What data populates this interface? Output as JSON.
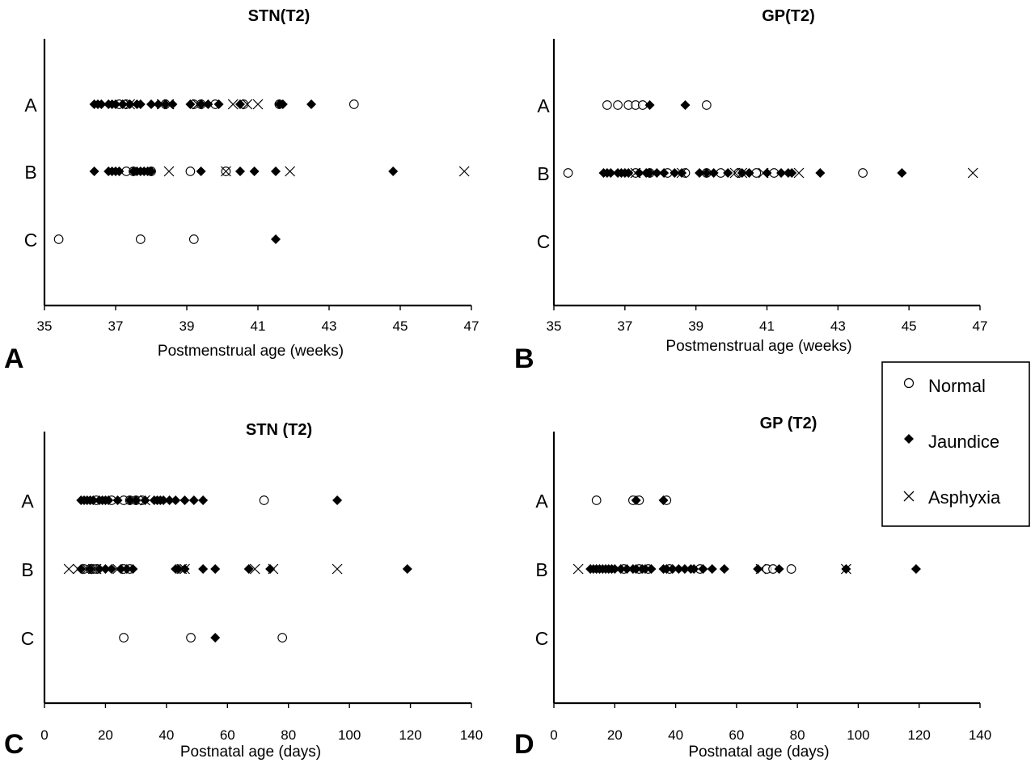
{
  "chart_data": [
    {
      "panel_letter": "A",
      "type": "scatter",
      "title": "STN(T2)",
      "xlabel": "Postmenstrual age  (weeks)",
      "xlim": [
        35,
        47
      ],
      "xticks": [
        "35",
        "37",
        "39",
        "41",
        "43",
        "45",
        "47"
      ],
      "categories": [
        "A",
        "B",
        "C"
      ],
      "series": [
        {
          "name": "Normal",
          "points": [
            [
              "A",
              37.1
            ],
            [
              "A",
              37.3
            ],
            [
              "A",
              38.4
            ],
            [
              "A",
              39.2
            ],
            [
              "A",
              39.4
            ],
            [
              "A",
              39.8
            ],
            [
              "A",
              40.6
            ],
            [
              "A",
              41.6
            ],
            [
              "A",
              43.7
            ],
            [
              "B",
              37.3
            ],
            [
              "B",
              37.5
            ],
            [
              "B",
              38.0
            ],
            [
              "B",
              39.1
            ],
            [
              "B",
              40.1
            ],
            [
              "C",
              35.4
            ],
            [
              "C",
              37.7
            ],
            [
              "C",
              39.2
            ]
          ]
        },
        {
          "name": "Jaundice",
          "points": [
            [
              "A",
              36.4
            ],
            [
              "A",
              36.5
            ],
            [
              "A",
              36.6
            ],
            [
              "A",
              36.8
            ],
            [
              "A",
              36.9
            ],
            [
              "A",
              37.0
            ],
            [
              "A",
              37.2
            ],
            [
              "A",
              37.4
            ],
            [
              "A",
              37.6
            ],
            [
              "A",
              37.7
            ],
            [
              "A",
              38.0
            ],
            [
              "A",
              38.2
            ],
            [
              "A",
              38.4
            ],
            [
              "A",
              38.6
            ],
            [
              "A",
              39.1
            ],
            [
              "A",
              39.4
            ],
            [
              "A",
              39.6
            ],
            [
              "A",
              39.9
            ],
            [
              "A",
              40.5
            ],
            [
              "A",
              41.6
            ],
            [
              "A",
              41.7
            ],
            [
              "A",
              42.5
            ],
            [
              "B",
              36.4
            ],
            [
              "B",
              36.8
            ],
            [
              "B",
              36.9
            ],
            [
              "B",
              37.0
            ],
            [
              "B",
              37.1
            ],
            [
              "B",
              37.5
            ],
            [
              "B",
              37.6
            ],
            [
              "B",
              37.7
            ],
            [
              "B",
              37.8
            ],
            [
              "B",
              37.9
            ],
            [
              "B",
              38.0
            ],
            [
              "B",
              39.4
            ],
            [
              "B",
              40.5
            ],
            [
              "B",
              40.9
            ],
            [
              "B",
              41.5
            ],
            [
              "B",
              44.8
            ],
            [
              "C",
              41.5
            ]
          ]
        },
        {
          "name": "Asphyxia",
          "points": [
            [
              "A",
              37.4
            ],
            [
              "A",
              38.3
            ],
            [
              "A",
              38.5
            ],
            [
              "A",
              39.3
            ],
            [
              "A",
              40.3
            ],
            [
              "A",
              40.7
            ],
            [
              "A",
              41.0
            ],
            [
              "B",
              38.5
            ],
            [
              "B",
              40.1
            ],
            [
              "B",
              41.9
            ],
            [
              "B",
              46.8
            ]
          ]
        }
      ]
    },
    {
      "panel_letter": "B",
      "type": "scatter",
      "title": "GP(T2)",
      "xlabel": "Postmenstrual age  (weeks)",
      "xlim": [
        35,
        47
      ],
      "xticks": [
        "35",
        "37",
        "39",
        "41",
        "43",
        "45",
        "47"
      ],
      "categories": [
        "A",
        "B",
        "C"
      ],
      "series": [
        {
          "name": "Normal",
          "points": [
            [
              "A",
              36.5
            ],
            [
              "A",
              36.8
            ],
            [
              "A",
              37.1
            ],
            [
              "A",
              37.3
            ],
            [
              "A",
              37.5
            ],
            [
              "A",
              39.3
            ],
            [
              "B",
              35.4
            ],
            [
              "B",
              37.3
            ],
            [
              "B",
              37.7
            ],
            [
              "B",
              38.2
            ],
            [
              "B",
              38.7
            ],
            [
              "B",
              39.3
            ],
            [
              "B",
              39.7
            ],
            [
              "B",
              40.2
            ],
            [
              "B",
              40.7
            ],
            [
              "B",
              41.2
            ],
            [
              "B",
              43.7
            ]
          ]
        },
        {
          "name": "Jaundice",
          "points": [
            [
              "A",
              37.7
            ],
            [
              "A",
              38.7
            ],
            [
              "B",
              36.4
            ],
            [
              "B",
              36.5
            ],
            [
              "B",
              36.6
            ],
            [
              "B",
              36.8
            ],
            [
              "B",
              36.9
            ],
            [
              "B",
              37.0
            ],
            [
              "B",
              37.1
            ],
            [
              "B",
              37.4
            ],
            [
              "B",
              37.6
            ],
            [
              "B",
              37.7
            ],
            [
              "B",
              37.9
            ],
            [
              "B",
              38.1
            ],
            [
              "B",
              38.4
            ],
            [
              "B",
              38.6
            ],
            [
              "B",
              39.1
            ],
            [
              "B",
              39.3
            ],
            [
              "B",
              39.5
            ],
            [
              "B",
              39.9
            ],
            [
              "B",
              40.3
            ],
            [
              "B",
              40.5
            ],
            [
              "B",
              41.0
            ],
            [
              "B",
              41.4
            ],
            [
              "B",
              41.6
            ],
            [
              "B",
              41.7
            ],
            [
              "B",
              42.5
            ],
            [
              "B",
              44.8
            ]
          ]
        },
        {
          "name": "Asphyxia",
          "points": [
            [
              "B",
              37.3
            ],
            [
              "B",
              38.6
            ],
            [
              "B",
              40.1
            ],
            [
              "B",
              40.3
            ],
            [
              "B",
              40.9
            ],
            [
              "B",
              41.9
            ],
            [
              "B",
              46.8
            ]
          ]
        }
      ]
    },
    {
      "panel_letter": "C",
      "type": "scatter",
      "title": "STN (T2)",
      "xlabel": "Postnatal age  (days)",
      "xlim": [
        0,
        140
      ],
      "xticks": [
        "0",
        "20",
        "40",
        "60",
        "80",
        "100",
        "120",
        "140"
      ],
      "categories": [
        "A",
        "B",
        "C"
      ],
      "series": [
        {
          "name": "Normal",
          "points": [
            [
              "A",
              17
            ],
            [
              "A",
              22
            ],
            [
              "A",
              26
            ],
            [
              "A",
              28
            ],
            [
              "A",
              30
            ],
            [
              "A",
              32
            ],
            [
              "A",
              72
            ],
            [
              "B",
              13
            ],
            [
              "B",
              15
            ],
            [
              "B",
              16
            ],
            [
              "B",
              17
            ],
            [
              "B",
              26
            ],
            [
              "B",
              28
            ],
            [
              "C",
              26
            ],
            [
              "C",
              48
            ],
            [
              "C",
              78
            ]
          ]
        },
        {
          "name": "Jaundice",
          "points": [
            [
              "A",
              12
            ],
            [
              "A",
              13
            ],
            [
              "A",
              14
            ],
            [
              "A",
              15
            ],
            [
              "A",
              16
            ],
            [
              "A",
              18
            ],
            [
              "A",
              19
            ],
            [
              "A",
              20
            ],
            [
              "A",
              21
            ],
            [
              "A",
              24
            ],
            [
              "A",
              28
            ],
            [
              "A",
              30
            ],
            [
              "A",
              33
            ],
            [
              "A",
              36
            ],
            [
              "A",
              37
            ],
            [
              "A",
              38
            ],
            [
              "A",
              39
            ],
            [
              "A",
              41
            ],
            [
              "A",
              43
            ],
            [
              "A",
              46
            ],
            [
              "A",
              49
            ],
            [
              "A",
              52
            ],
            [
              "A",
              96
            ],
            [
              "B",
              12
            ],
            [
              "B",
              15
            ],
            [
              "B",
              18
            ],
            [
              "B",
              20
            ],
            [
              "B",
              22
            ],
            [
              "B",
              25
            ],
            [
              "B",
              27
            ],
            [
              "B",
              29
            ],
            [
              "B",
              43
            ],
            [
              "B",
              44
            ],
            [
              "B",
              46
            ],
            [
              "B",
              52
            ],
            [
              "B",
              56
            ],
            [
              "B",
              67
            ],
            [
              "B",
              74
            ],
            [
              "B",
              119
            ],
            [
              "C",
              56
            ]
          ]
        },
        {
          "name": "Asphyxia",
          "points": [
            [
              "A",
              33
            ],
            [
              "B",
              8
            ],
            [
              "B",
              11
            ],
            [
              "B",
              14
            ],
            [
              "B",
              16
            ],
            [
              "B",
              17
            ],
            [
              "B",
              24
            ],
            [
              "B",
              45
            ],
            [
              "B",
              46
            ],
            [
              "B",
              69
            ],
            [
              "B",
              75
            ],
            [
              "B",
              96
            ]
          ]
        }
      ]
    },
    {
      "panel_letter": "D",
      "type": "scatter",
      "title": "GP (T2)",
      "xlabel": "Postnatal age  (days)",
      "xlim": [
        0,
        140
      ],
      "xticks": [
        "0",
        "20",
        "40",
        "60",
        "80",
        "100",
        "120",
        "140"
      ],
      "categories": [
        "A",
        "B",
        "C"
      ],
      "series": [
        {
          "name": "Normal",
          "points": [
            [
              "A",
              14
            ],
            [
              "A",
              26
            ],
            [
              "A",
              28
            ],
            [
              "A",
              37
            ],
            [
              "B",
              23
            ],
            [
              "B",
              28
            ],
            [
              "B",
              31
            ],
            [
              "B",
              38
            ],
            [
              "B",
              48
            ],
            [
              "B",
              70
            ],
            [
              "B",
              72
            ],
            [
              "B",
              78
            ]
          ]
        },
        {
          "name": "Jaundice",
          "points": [
            [
              "A",
              27
            ],
            [
              "A",
              36
            ],
            [
              "B",
              12
            ],
            [
              "B",
              13
            ],
            [
              "B",
              14
            ],
            [
              "B",
              15
            ],
            [
              "B",
              16
            ],
            [
              "B",
              17
            ],
            [
              "B",
              18
            ],
            [
              "B",
              19
            ],
            [
              "B",
              20
            ],
            [
              "B",
              22
            ],
            [
              "B",
              24
            ],
            [
              "B",
              26
            ],
            [
              "B",
              27
            ],
            [
              "B",
              29
            ],
            [
              "B",
              30
            ],
            [
              "B",
              32
            ],
            [
              "B",
              36
            ],
            [
              "B",
              37
            ],
            [
              "B",
              39
            ],
            [
              "B",
              41
            ],
            [
              "B",
              43
            ],
            [
              "B",
              45
            ],
            [
              "B",
              46
            ],
            [
              "B",
              49
            ],
            [
              "B",
              52
            ],
            [
              "B",
              56
            ],
            [
              "B",
              67
            ],
            [
              "B",
              74
            ],
            [
              "B",
              96
            ],
            [
              "B",
              119
            ]
          ]
        },
        {
          "name": "Asphyxia",
          "points": [
            [
              "B",
              8
            ],
            [
              "B",
              68
            ],
            [
              "B",
              96
            ]
          ]
        }
      ]
    }
  ],
  "legend": {
    "placement": "right, between panels B and D",
    "items": [
      {
        "label": "Normal",
        "marker": "circle"
      },
      {
        "label": "Jaundice",
        "marker": "diamond"
      },
      {
        "label": "Asphyxia",
        "marker": "cross"
      }
    ]
  }
}
